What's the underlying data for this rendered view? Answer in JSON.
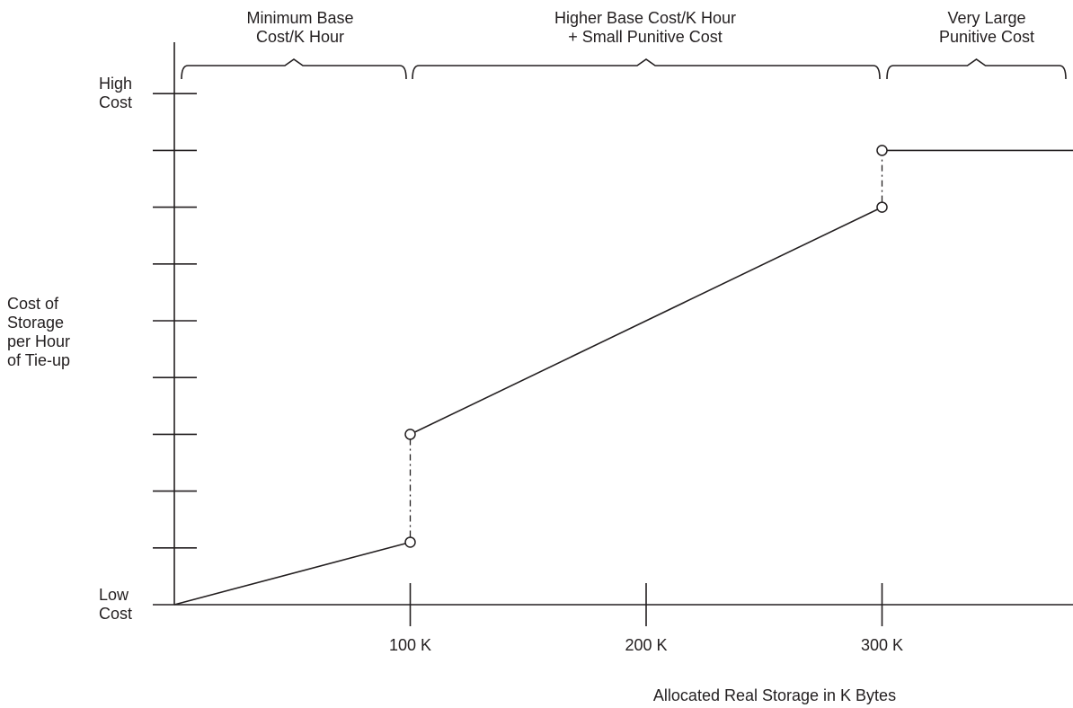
{
  "chart_data": {
    "type": "line",
    "title": "",
    "xlabel": "Allocated Real Storage in K Bytes",
    "ylabel": [
      "Cost of",
      "Storage",
      "per Hour",
      "of Tie-up"
    ],
    "x_ticks": [
      {
        "value": 100,
        "label": "100 K"
      },
      {
        "value": 200,
        "label": "200 K"
      },
      {
        "value": 300,
        "label": "300 K"
      }
    ],
    "xlim": [
      0,
      390
    ],
    "ylim": [
      0,
      9
    ],
    "y_tick_values": [
      1,
      2,
      3,
      4,
      5,
      6,
      7,
      8,
      9
    ],
    "y_end_labels": [
      {
        "value": 9,
        "lines": [
          "High",
          "Cost"
        ]
      },
      {
        "value": 0,
        "lines": [
          "Low",
          "Cost"
        ]
      }
    ],
    "segments": [
      {
        "points": [
          [
            0,
            0
          ],
          [
            100,
            1.1
          ]
        ]
      },
      {
        "points": [
          [
            100,
            3.0
          ],
          [
            300,
            7.0
          ]
        ]
      },
      {
        "points": [
          [
            300,
            8.0
          ],
          [
            390,
            8.0
          ]
        ]
      }
    ],
    "jumps": [
      {
        "x": 100,
        "from": 1.1,
        "to": 3.0
      },
      {
        "x": 300,
        "from": 7.0,
        "to": 8.0
      }
    ],
    "open_points": [
      [
        100,
        1.1
      ],
      [
        100,
        3.0
      ],
      [
        300,
        7.0
      ],
      [
        300,
        8.0
      ]
    ],
    "grid": false,
    "legend": "none",
    "annotations": [
      {
        "x_start": 0,
        "x_end": 100,
        "lines": [
          "Minimum Base",
          "Cost/K Hour"
        ]
      },
      {
        "x_start": 100,
        "x_end": 300,
        "lines": [
          "Higher Base Cost/K Hour",
          "+ Small Punitive Cost"
        ]
      },
      {
        "x_start": 300,
        "x_end": 390,
        "lines": [
          "Very Large",
          "Punitive Cost"
        ]
      }
    ],
    "color": "#231f20"
  }
}
